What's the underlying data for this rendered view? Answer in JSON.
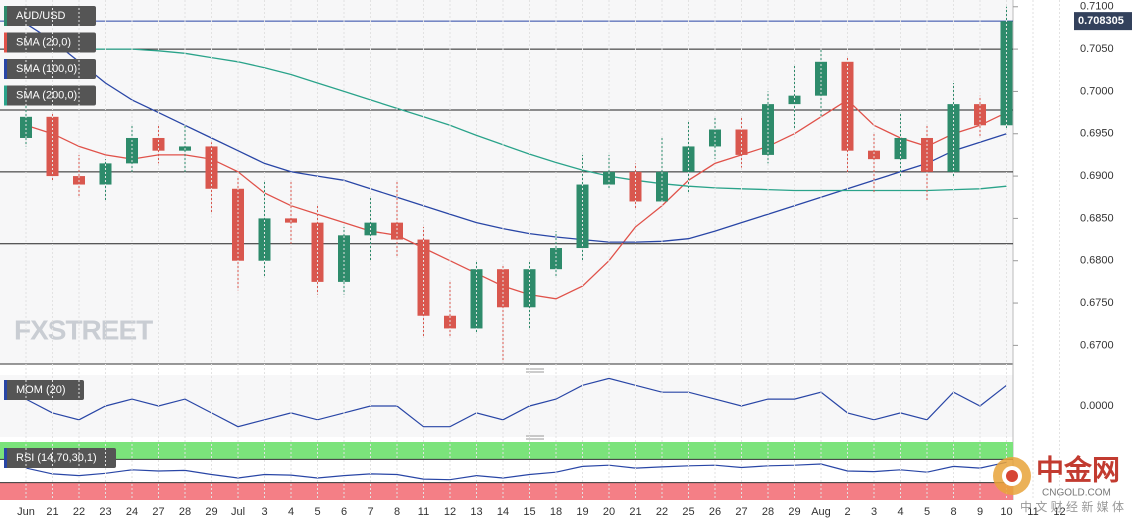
{
  "chart_data": {
    "type": "candlestick",
    "symbol": "AUD/USD",
    "last_price": 0.708305,
    "last_price_label": "0.708305",
    "categories": [
      "Jun",
      "21",
      "22",
      "23",
      "24",
      "27",
      "28",
      "29",
      "Jul",
      "3",
      "4",
      "5",
      "6",
      "7",
      "8",
      "11",
      "12",
      "13",
      "14",
      "15",
      "18",
      "19",
      "20",
      "21",
      "22",
      "25",
      "26",
      "27",
      "28",
      "29",
      "Aug",
      "2",
      "3",
      "4",
      "5",
      "8",
      "9",
      "10",
      "11",
      "12"
    ],
    "open": [
      0.6945,
      0.697,
      0.69,
      0.689,
      0.6915,
      0.6945,
      0.693,
      0.6935,
      0.6885,
      0.68,
      0.685,
      0.6845,
      0.6775,
      0.683,
      0.6845,
      0.6825,
      0.6735,
      0.672,
      0.679,
      0.6745,
      0.679,
      0.6815,
      0.689,
      0.6905,
      0.687,
      0.6905,
      0.6935,
      0.6955,
      0.6925,
      0.6985,
      0.6995,
      0.7035,
      0.693,
      0.692,
      0.6945,
      0.6905,
      0.6985,
      0.696,
      null,
      null
    ],
    "high": [
      0.6985,
      0.6975,
      0.6925,
      0.692,
      0.696,
      0.696,
      0.696,
      0.694,
      0.69,
      0.6895,
      0.6895,
      0.6865,
      0.684,
      0.6875,
      0.6895,
      0.684,
      0.6775,
      0.68,
      0.6795,
      0.68,
      0.6835,
      0.6925,
      0.6925,
      0.6915,
      0.6945,
      0.6965,
      0.697,
      0.697,
      0.7,
      0.703,
      0.705,
      0.704,
      0.695,
      0.6975,
      0.696,
      0.701,
      0.6995,
      0.71,
      null,
      null
    ],
    "low": [
      0.6935,
      0.6895,
      0.6875,
      0.687,
      0.6905,
      0.6915,
      0.6905,
      0.6855,
      0.6765,
      0.678,
      0.682,
      0.676,
      0.676,
      0.68,
      0.6805,
      0.671,
      0.671,
      0.6715,
      0.668,
      0.672,
      0.678,
      0.68,
      0.6885,
      0.686,
      0.687,
      0.688,
      0.692,
      0.691,
      0.6915,
      0.6955,
      0.697,
      0.6905,
      0.688,
      0.69,
      0.687,
      0.69,
      0.6945,
      0.6955,
      null,
      null
    ],
    "close": [
      0.697,
      0.69,
      0.689,
      0.6915,
      0.6945,
      0.693,
      0.6935,
      0.6885,
      0.68,
      0.685,
      0.6845,
      0.6775,
      0.683,
      0.6845,
      0.6825,
      0.6735,
      0.672,
      0.679,
      0.6745,
      0.679,
      0.6815,
      0.689,
      0.6905,
      0.687,
      0.6905,
      0.6935,
      0.6955,
      0.6925,
      0.6985,
      0.6995,
      0.7035,
      0.693,
      0.692,
      0.6945,
      0.6905,
      0.6985,
      0.696,
      0.7083,
      null,
      null
    ],
    "up_color": "#2e8b6b",
    "down_color": "#d9574e",
    "series": [
      {
        "name": "SMA (20,0)",
        "color": "#e0524a",
        "values": [
          0.696,
          0.695,
          0.6935,
          0.6925,
          0.692,
          0.6925,
          0.6925,
          0.692,
          0.6905,
          0.688,
          0.6865,
          0.6855,
          0.6845,
          0.6835,
          0.683,
          0.6815,
          0.68,
          0.6785,
          0.677,
          0.676,
          0.6755,
          0.677,
          0.68,
          0.684,
          0.6865,
          0.6895,
          0.6915,
          0.6925,
          0.6935,
          0.695,
          0.697,
          0.699,
          0.696,
          0.6945,
          0.6935,
          0.695,
          0.696,
          0.6975,
          null,
          null
        ]
      },
      {
        "name": "SMA (100,0)",
        "color": "#2946a6",
        "values": [
          0.708,
          0.706,
          0.7035,
          0.701,
          0.699,
          0.6975,
          0.696,
          0.6945,
          0.693,
          0.6915,
          0.6905,
          0.69,
          0.6895,
          0.6885,
          0.6875,
          0.6865,
          0.6855,
          0.6845,
          0.6838,
          0.6832,
          0.6828,
          0.6825,
          0.6822,
          0.6822,
          0.6823,
          0.6826,
          0.6835,
          0.6845,
          0.6855,
          0.6865,
          0.6875,
          0.6885,
          0.6895,
          0.6905,
          0.6915,
          0.693,
          0.694,
          0.695,
          null,
          null
        ]
      },
      {
        "name": "SMA (200,0)",
        "color": "#2aa38a",
        "values": [
          0.705,
          0.705,
          0.705,
          0.705,
          0.705,
          0.7048,
          0.7045,
          0.704,
          0.7035,
          0.7028,
          0.702,
          0.701,
          0.7,
          0.699,
          0.698,
          0.697,
          0.696,
          0.6948,
          0.6937,
          0.6926,
          0.6916,
          0.6907,
          0.69,
          0.6895,
          0.6891,
          0.6888,
          0.6886,
          0.6885,
          0.6884,
          0.6883,
          0.6883,
          0.6883,
          0.6883,
          0.6883,
          0.6883,
          0.6884,
          0.6885,
          0.6888,
          null,
          null
        ]
      }
    ],
    "levels": [
      0.7083,
      0.705,
      0.6978,
      0.6905,
      0.682
    ],
    "ylim": [
      0.6678,
      0.7108
    ],
    "yticks": [
      {
        "value": 0.71,
        "label": "0.7100"
      },
      {
        "value": 0.705,
        "label": "0.7050"
      },
      {
        "value": 0.7,
        "label": "0.7000"
      },
      {
        "value": 0.695,
        "label": "0.6950"
      },
      {
        "value": 0.69,
        "label": "0.6900"
      },
      {
        "value": 0.685,
        "label": "0.6850"
      },
      {
        "value": 0.68,
        "label": "0.6800"
      },
      {
        "value": 0.675,
        "label": "0.6750"
      },
      {
        "value": 0.67,
        "label": "0.6700"
      }
    ],
    "momentum": {
      "name": "MOM (20)",
      "color": "#2946a6",
      "values": [
        0.001,
        -0.001,
        -0.002,
        0.0,
        0.001,
        0.0,
        0.001,
        -0.001,
        -0.003,
        -0.002,
        -0.001,
        -0.002,
        -0.001,
        0.0,
        0.0,
        -0.003,
        -0.003,
        -0.001,
        -0.002,
        0.0,
        0.001,
        0.003,
        0.004,
        0.003,
        0.002,
        0.002,
        0.001,
        0.0,
        0.001,
        0.001,
        0.002,
        -0.001,
        -0.002,
        -0.001,
        -0.002,
        0.002,
        0.0,
        0.003,
        null,
        null
      ],
      "ylim": [
        -0.0045,
        0.0045
      ],
      "yticks": [
        {
          "value": 0,
          "label": "0.0000"
        }
      ]
    },
    "rsi": {
      "name": "RSI (14,70,30,1)",
      "color": "#2946a6",
      "overbought": 70,
      "oversold": 30,
      "values": [
        55,
        45,
        42,
        46,
        52,
        50,
        51,
        44,
        38,
        44,
        43,
        38,
        42,
        45,
        44,
        36,
        35,
        42,
        38,
        44,
        48,
        58,
        60,
        55,
        57,
        59,
        60,
        56,
        59,
        60,
        62,
        50,
        49,
        52,
        48,
        58,
        55,
        65,
        null,
        null
      ],
      "ylim": [
        0,
        100
      ]
    }
  },
  "logo": "FXSTREET",
  "watermark": {
    "title": "中金网",
    "site": "CNGOLD.COM",
    "tagline": "中 文 财 经 新 媒 体"
  }
}
